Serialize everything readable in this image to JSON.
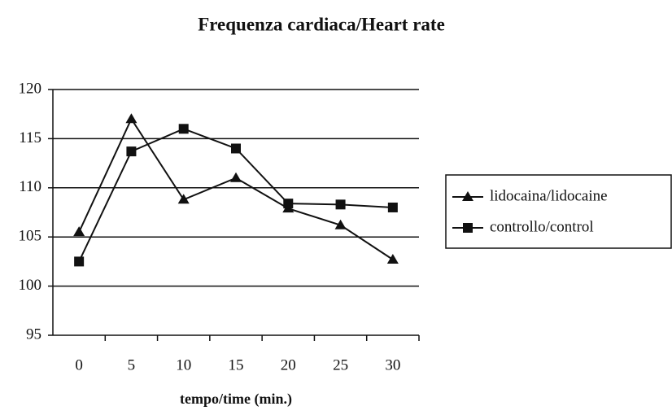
{
  "chart_data": {
    "type": "line",
    "title": "Frequenza cardiaca/Heart rate",
    "x_label": "tempo/time (min.)",
    "x": [
      0,
      5,
      10,
      15,
      20,
      25,
      30
    ],
    "xlim": [
      -2.5,
      32.5
    ],
    "xticks": [
      0,
      5,
      10,
      15,
      20,
      25,
      30
    ],
    "ylim": [
      95,
      120
    ],
    "yticks": [
      95,
      100,
      105,
      110,
      115,
      120
    ],
    "grid": true,
    "legend": "right",
    "series": [
      {
        "name": "lidocaina/lidocaine",
        "color": "#111111",
        "marker": "triangle",
        "values": [
          105.5,
          117,
          108.8,
          111,
          107.9,
          106.2,
          102.7
        ]
      },
      {
        "name": "controllo/control",
        "color": "#111111",
        "marker": "square",
        "values": [
          102.5,
          113.7,
          116,
          114,
          108.4,
          108.3,
          108
        ]
      }
    ]
  }
}
